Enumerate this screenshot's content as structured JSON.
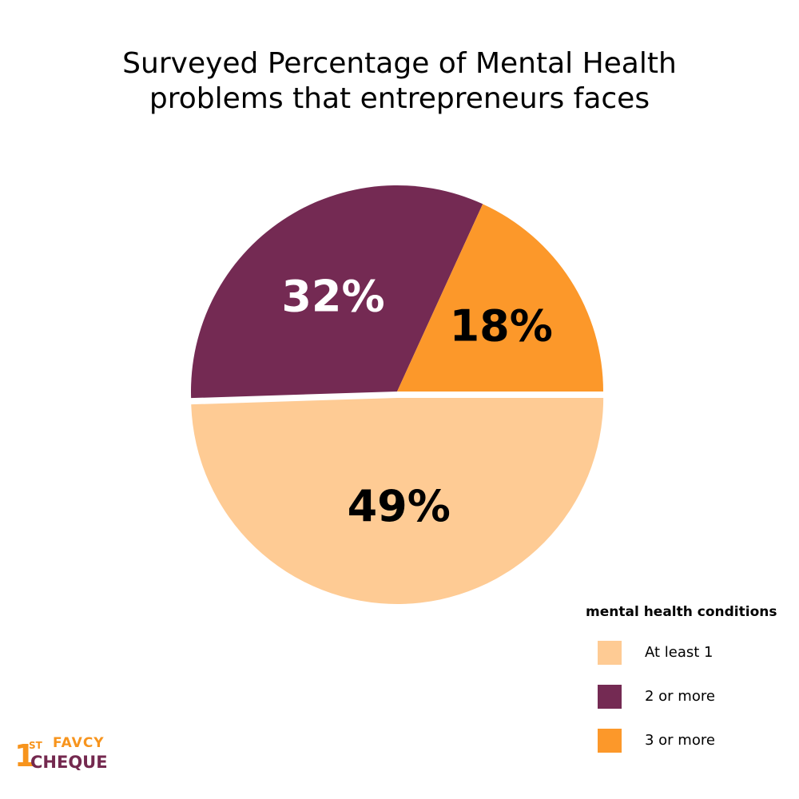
{
  "chart_data": {
    "type": "pie",
    "title": [
      "Surveyed Percentage of Mental Health",
      "problems that entrepreneurs faces"
    ],
    "legend_title": "mental health conditions",
    "legend_position": "bottom-right",
    "slices": [
      {
        "name": "At least 1",
        "value": 49,
        "label": "49%",
        "color": "#fecb94",
        "label_color": "#000000"
      },
      {
        "name": "2 or more",
        "value": 32,
        "label": "32%",
        "color": "#742a53",
        "label_color": "#ffffff"
      },
      {
        "name": "3 or more",
        "value": 18,
        "label": "18%",
        "color": "#fc982a",
        "label_color": "#000000"
      }
    ]
  },
  "logo": {
    "one": "1",
    "st": "ST",
    "favcy": "FAVCY",
    "cheque": "CHEQUE"
  }
}
